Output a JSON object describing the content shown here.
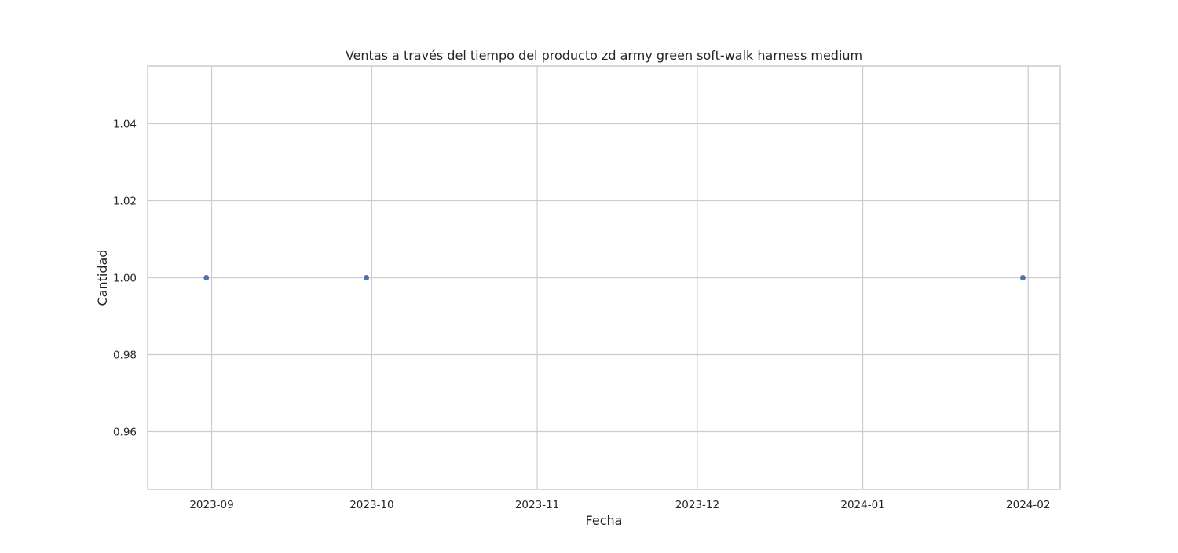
{
  "chart_data": {
    "type": "scatter",
    "title": "Ventas a través del tiempo del producto zd army green soft-walk harness medium",
    "xlabel": "Fecha",
    "ylabel": "Cantidad",
    "x_axis_type": "date",
    "xlim": [
      "2023-08-20",
      "2024-02-07"
    ],
    "ylim": [
      0.945,
      1.055
    ],
    "x_ticks": [
      "2023-09-01",
      "2023-10-01",
      "2023-11-01",
      "2023-12-01",
      "2024-01-01",
      "2024-02-01"
    ],
    "x_tick_labels": [
      "2023-09",
      "2023-10",
      "2023-11",
      "2023-12",
      "2024-01",
      "2024-02"
    ],
    "y_ticks": [
      0.96,
      0.98,
      1.0,
      1.02,
      1.04
    ],
    "y_tick_labels": [
      "0.96",
      "0.98",
      "1.00",
      "1.02",
      "1.04"
    ],
    "grid": true,
    "legend": "none",
    "series": [
      {
        "color": "#4c72b0",
        "points": [
          {
            "x": "2023-08-31",
            "y": 1
          },
          {
            "x": "2023-09-30",
            "y": 1
          },
          {
            "x": "2024-01-31",
            "y": 1
          }
        ]
      }
    ]
  }
}
